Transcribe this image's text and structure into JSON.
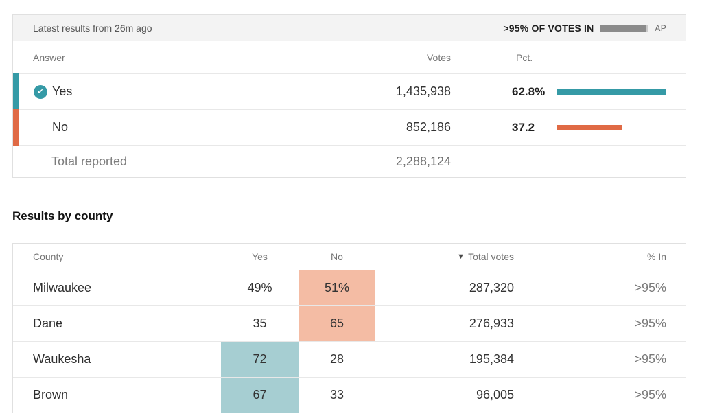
{
  "summary": {
    "updated": "Latest results from 26m ago",
    "votes_in_label": ">95% OF VOTES IN",
    "votes_in_fill_pct": 95,
    "source_label": "AP",
    "columns": {
      "answer": "Answer",
      "votes": "Votes",
      "pct": "Pct."
    },
    "rows": [
      {
        "answer": "Yes",
        "votes": "1,435,938",
        "pct": "62.8%",
        "pct_value": 62.8,
        "color": "#359aa6",
        "winner": true
      },
      {
        "answer": "No",
        "votes": "852,186",
        "pct": "37.2",
        "pct_value": 37.2,
        "color": "#e06a45",
        "winner": false
      }
    ],
    "total": {
      "label": "Total reported",
      "votes": "2,288,124"
    },
    "check_glyph": "✔"
  },
  "county": {
    "title": "Results by county",
    "columns": {
      "county": "County",
      "yes": "Yes",
      "no": "No",
      "total": "Total votes",
      "pct_in": "% In"
    },
    "sort_indicator": "▼",
    "highlight_colors": {
      "yes": "#a6ced2",
      "no": "#f4bca4"
    },
    "rows": [
      {
        "county": "Milwaukee",
        "yes": "49%",
        "no": "51%",
        "leader": "no",
        "total": "287,320",
        "pct_in": ">95%"
      },
      {
        "county": "Dane",
        "yes": "35",
        "no": "65",
        "leader": "no",
        "total": "276,933",
        "pct_in": ">95%"
      },
      {
        "county": "Waukesha",
        "yes": "72",
        "no": "28",
        "leader": "yes",
        "total": "195,384",
        "pct_in": ">95%"
      },
      {
        "county": "Brown",
        "yes": "67",
        "no": "33",
        "leader": "yes",
        "total": "96,005",
        "pct_in": ">95%"
      }
    ]
  },
  "chart_data": [
    {
      "type": "bar",
      "title": "Statewide referendum results",
      "categories": [
        "Yes",
        "No"
      ],
      "series": [
        {
          "name": "Votes",
          "values": [
            1435938,
            852186
          ]
        },
        {
          "name": "Pct",
          "values": [
            62.8,
            37.2
          ]
        }
      ],
      "total_reported": 2288124,
      "annotations": [
        ">95% OF VOTES IN",
        "Source: AP",
        "Latest results from 26m ago"
      ],
      "colors": {
        "Yes": "#359aa6",
        "No": "#e06a45"
      },
      "legend_position": "none",
      "xlabel": "",
      "ylabel": "Pct.",
      "ylim": [
        0,
        62.8
      ]
    },
    {
      "type": "table",
      "title": "Results by county",
      "columns": [
        "County",
        "Yes",
        "No",
        "Total votes",
        "% In"
      ],
      "rows": [
        [
          "Milwaukee",
          49,
          51,
          287320,
          ">95%"
        ],
        [
          "Dane",
          35,
          65,
          276933,
          ">95%"
        ],
        [
          "Waukesha",
          72,
          28,
          195384,
          ">95%"
        ],
        [
          "Brown",
          67,
          33,
          96005,
          ">95%"
        ]
      ],
      "sort": {
        "column": "Total votes",
        "direction": "desc"
      },
      "cell_highlights": {
        "yes_leader": "#a6ced2",
        "no_leader": "#f4bca4"
      }
    }
  ]
}
